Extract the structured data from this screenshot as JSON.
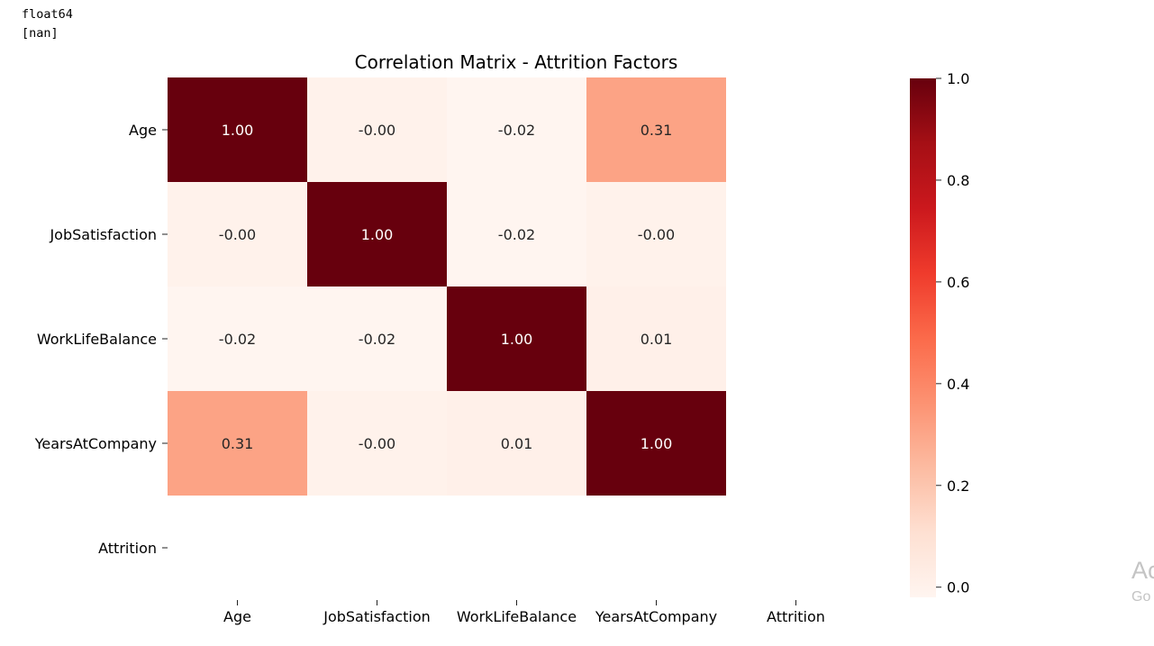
{
  "console_output": {
    "line1": "float64",
    "line2": "[nan]"
  },
  "chart_data": {
    "type": "heatmap",
    "title": "Correlation Matrix - Attrition Factors",
    "rows": [
      "Age",
      "JobSatisfaction",
      "WorkLifeBalance",
      "YearsAtCompany",
      "Attrition"
    ],
    "columns": [
      "Age",
      "JobSatisfaction",
      "WorkLifeBalance",
      "YearsAtCompany",
      "Attrition"
    ],
    "values": [
      [
        1.0,
        -0.0,
        -0.02,
        0.31,
        null
      ],
      [
        -0.0,
        1.0,
        -0.02,
        -0.0,
        null
      ],
      [
        -0.02,
        -0.02,
        1.0,
        0.01,
        null
      ],
      [
        0.31,
        -0.0,
        0.01,
        1.0,
        null
      ],
      [
        null,
        null,
        null,
        null,
        null
      ]
    ],
    "value_labels": [
      [
        "1.00",
        "-0.00",
        "-0.02",
        "0.31",
        ""
      ],
      [
        "-0.00",
        "1.00",
        "-0.02",
        "-0.00",
        ""
      ],
      [
        "-0.02",
        "-0.02",
        "1.00",
        "0.01",
        ""
      ],
      [
        "0.31",
        "-0.00",
        "0.01",
        "1.00",
        ""
      ],
      [
        "",
        "",
        "",
        "",
        ""
      ]
    ],
    "colormap": "Reds",
    "colorbar": {
      "range": [
        -0.02,
        1.0
      ],
      "ticks": [
        0.0,
        0.2,
        0.4,
        0.6,
        0.8,
        1.0
      ],
      "tick_labels": [
        "0.0",
        "0.2",
        "0.4",
        "0.6",
        "0.8",
        "1.0"
      ]
    }
  },
  "overlay": {
    "watermark_line1": "Ac",
    "watermark_line2": "Go"
  }
}
